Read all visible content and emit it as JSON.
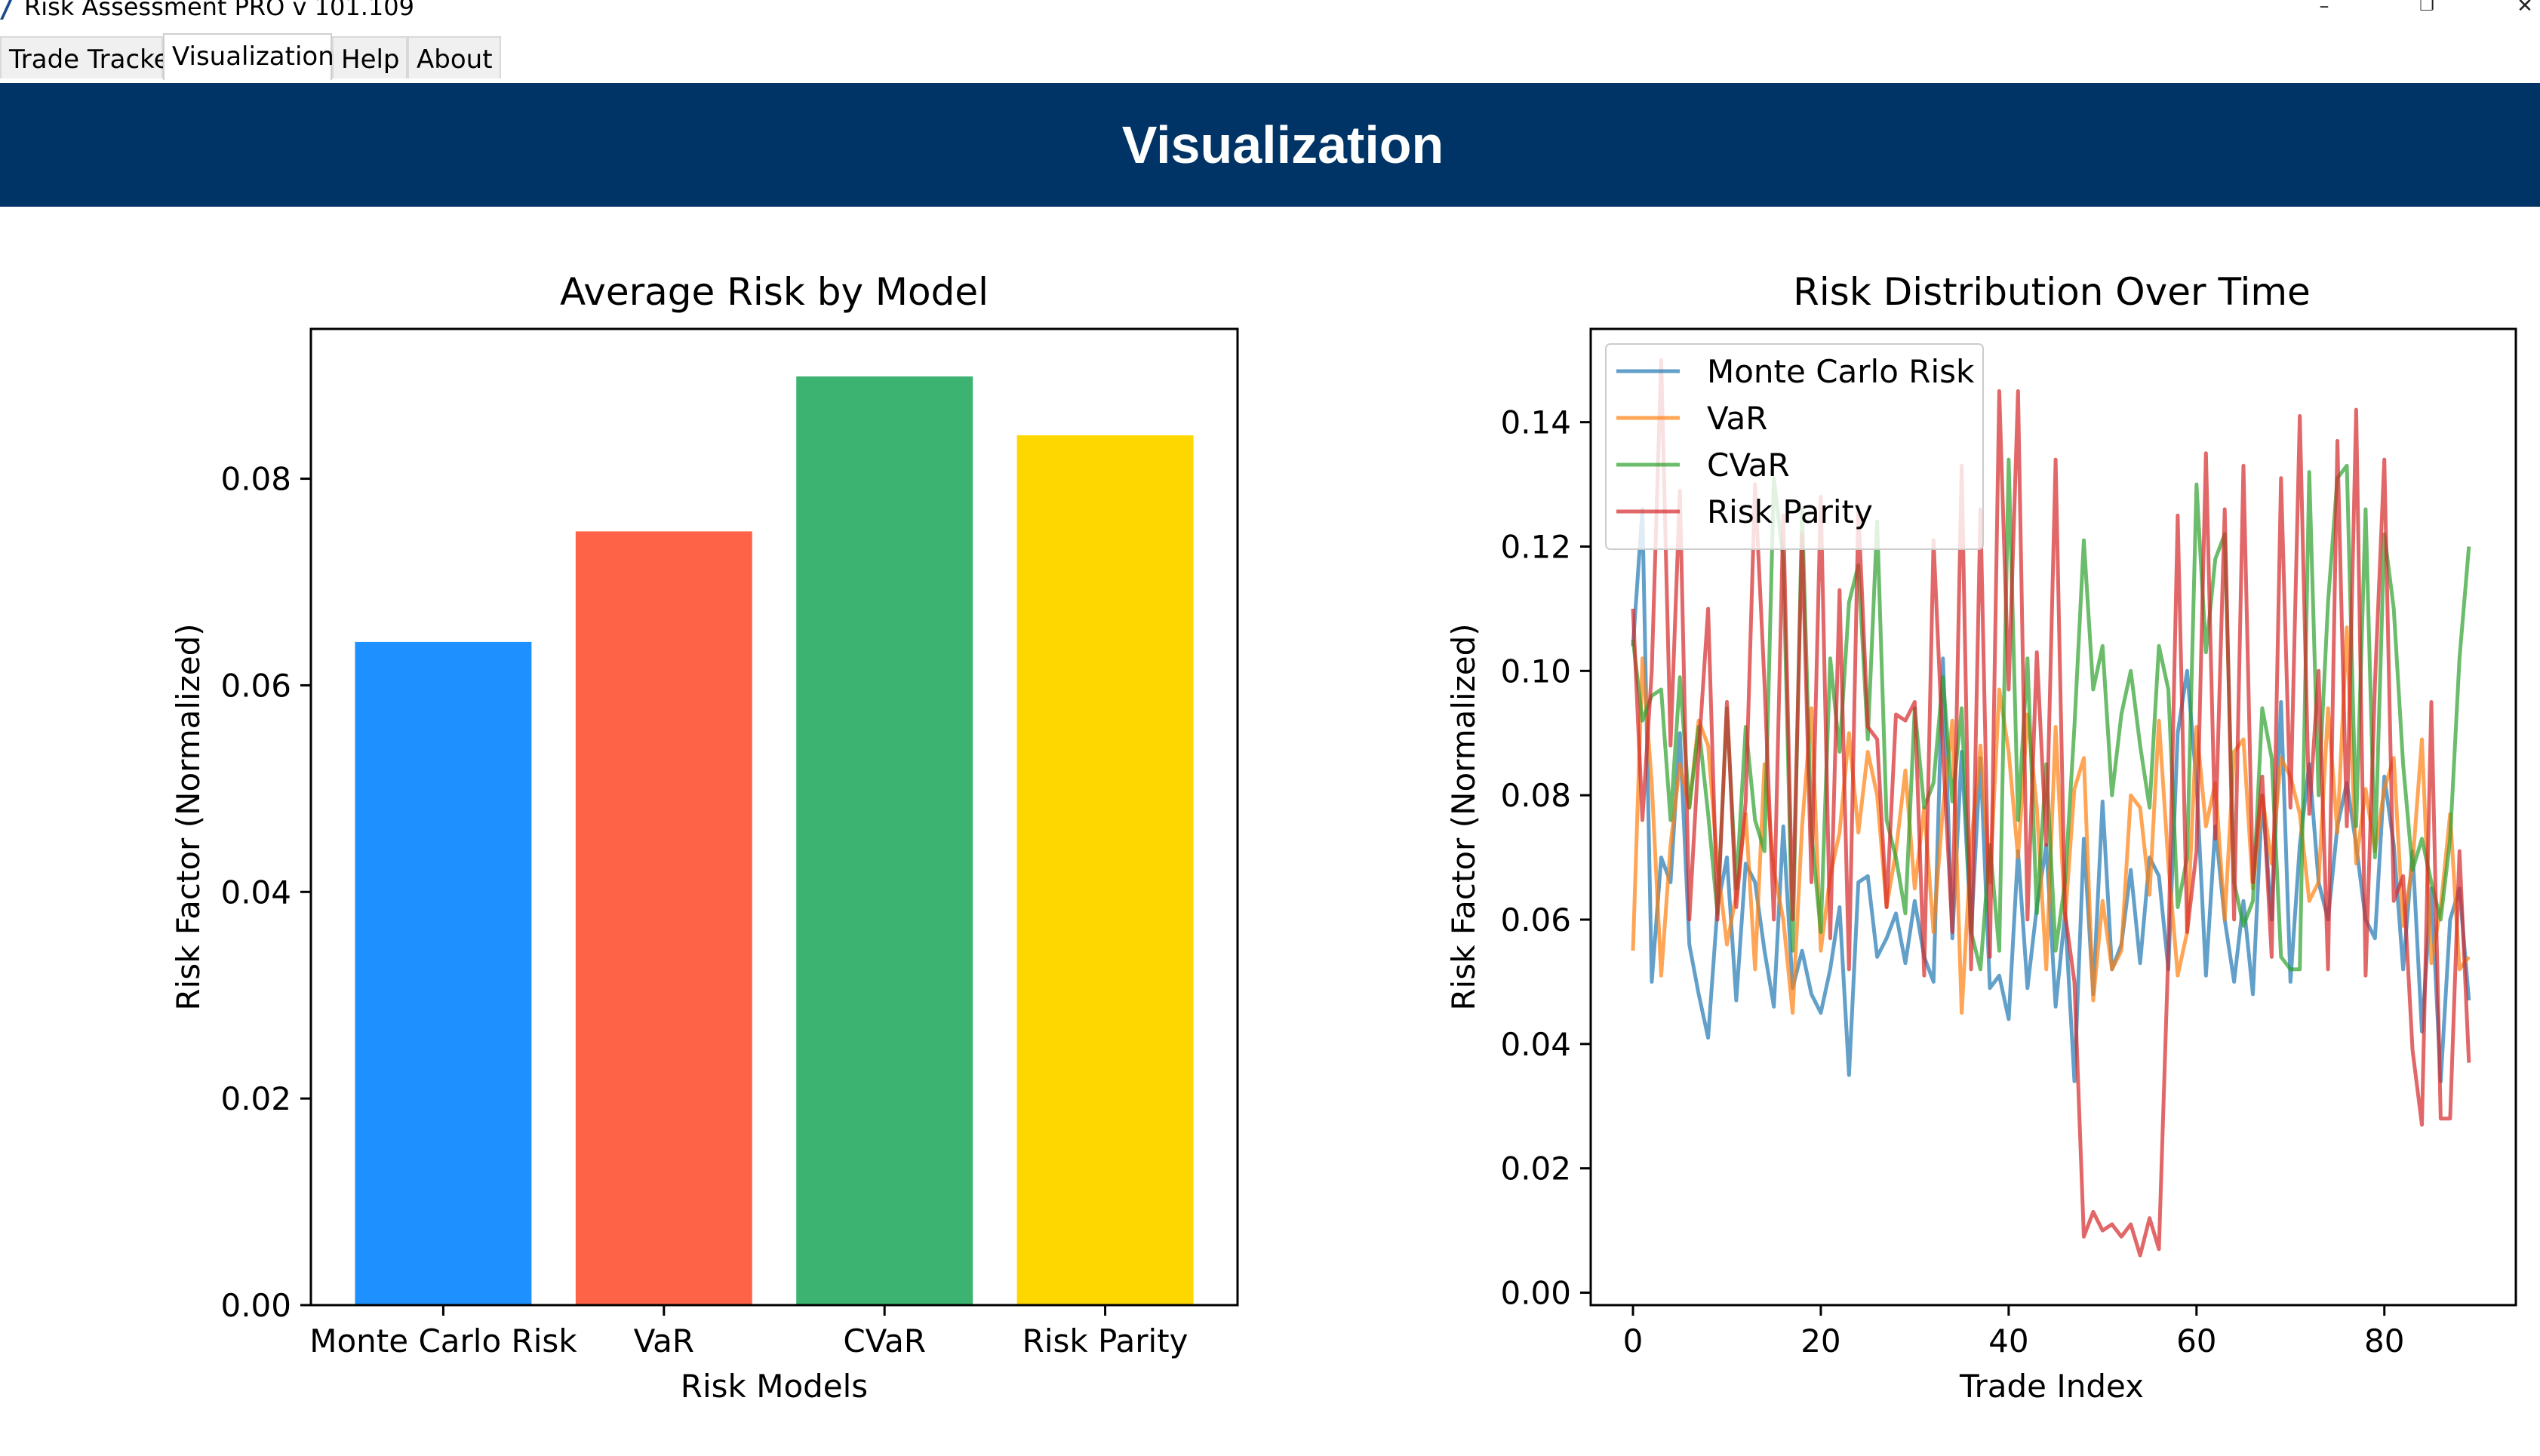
{
  "window": {
    "title": "Risk Assessment PRO v 101.109",
    "minimize": "–",
    "restore": "❐",
    "close": "✕"
  },
  "tabs": [
    {
      "label": "Trade Tracker",
      "active": false
    },
    {
      "label": "Visualization",
      "active": true
    },
    {
      "label": "Help",
      "active": false
    },
    {
      "label": "About",
      "active": false
    }
  ],
  "banner": {
    "title": "Visualization"
  },
  "colors": {
    "banner": "#003366",
    "bar_colors": [
      "#1E90FF",
      "#FF6347",
      "#3CB371",
      "#FFD700"
    ],
    "line_colors": [
      "#1f77b4",
      "#ff7f0e",
      "#2ca02c",
      "#d62728"
    ]
  },
  "chart_data": [
    {
      "type": "bar",
      "title": "Average Risk by Model",
      "xlabel": "Risk Models",
      "ylabel": "Risk Factor (Normalized)",
      "categories": [
        "Monte Carlo Risk",
        "VaR",
        "CVaR",
        "Risk Parity"
      ],
      "values": [
        0.0642,
        0.0749,
        0.0899,
        0.0842
      ],
      "ylim": [
        0,
        0.0945
      ],
      "yticks": [
        0.0,
        0.02,
        0.04,
        0.06,
        0.08
      ],
      "ytick_labels": [
        "0.00",
        "0.02",
        "0.04",
        "0.06",
        "0.08"
      ],
      "colors": [
        "#1E90FF",
        "#FF6347",
        "#3CB371",
        "#FFD700"
      ]
    },
    {
      "type": "line",
      "title": "Risk Distribution Over Time",
      "xlabel": "Trade Index",
      "ylabel": "Risk Factor (Normalized)",
      "xlim": [
        -4.5,
        94
      ],
      "ylim": [
        -0.002,
        0.155
      ],
      "xticks": [
        0,
        20,
        40,
        60,
        80
      ],
      "xtick_labels": [
        "0",
        "20",
        "40",
        "60",
        "80"
      ],
      "yticks": [
        0.0,
        0.02,
        0.04,
        0.06,
        0.08,
        0.1,
        0.12,
        0.14
      ],
      "ytick_labels": [
        "0.00",
        "0.02",
        "0.04",
        "0.06",
        "0.08",
        "0.10",
        "0.12",
        "0.14"
      ],
      "legend": {
        "position": "upper-left"
      },
      "series": [
        {
          "name": "Monte Carlo Risk",
          "color": "#1f77b4",
          "values": [
            0.104,
            0.126,
            0.05,
            0.07,
            0.066,
            0.09,
            0.056,
            0.048,
            0.041,
            0.062,
            0.07,
            0.047,
            0.069,
            0.066,
            0.055,
            0.046,
            0.075,
            0.049,
            0.055,
            0.048,
            0.045,
            0.052,
            0.062,
            0.035,
            0.066,
            0.067,
            0.054,
            0.057,
            0.061,
            0.053,
            0.063,
            0.054,
            0.05,
            0.102,
            0.057,
            0.087,
            0.058,
            0.086,
            0.049,
            0.051,
            0.044,
            0.071,
            0.049,
            0.062,
            0.072,
            0.046,
            0.061,
            0.034,
            0.073,
            0.048,
            0.079,
            0.052,
            0.056,
            0.068,
            0.053,
            0.07,
            0.067,
            0.052,
            0.09,
            0.1,
            0.082,
            0.051,
            0.075,
            0.06,
            0.05,
            0.063,
            0.048,
            0.08,
            0.06,
            0.095,
            0.05,
            0.072,
            0.085,
            0.066,
            0.06,
            0.075,
            0.082,
            0.072,
            0.06,
            0.057,
            0.083,
            0.072,
            0.052,
            0.071,
            0.042,
            0.065,
            0.034,
            0.06,
            0.065,
            0.047
          ]
        },
        {
          "name": "VaR",
          "color": "#ff7f0e",
          "values": [
            0.055,
            0.102,
            0.082,
            0.051,
            0.072,
            0.085,
            0.078,
            0.092,
            0.088,
            0.069,
            0.056,
            0.064,
            0.077,
            0.052,
            0.085,
            0.068,
            0.06,
            0.045,
            0.075,
            0.094,
            0.055,
            0.067,
            0.074,
            0.09,
            0.074,
            0.087,
            0.08,
            0.062,
            0.071,
            0.084,
            0.065,
            0.078,
            0.058,
            0.078,
            0.092,
            0.045,
            0.072,
            0.088,
            0.066,
            0.097,
            0.087,
            0.07,
            0.093,
            0.078,
            0.052,
            0.091,
            0.06,
            0.081,
            0.086,
            0.047,
            0.063,
            0.052,
            0.055,
            0.08,
            0.078,
            0.064,
            0.092,
            0.069,
            0.051,
            0.058,
            0.091,
            0.075,
            0.082,
            0.06,
            0.087,
            0.089,
            0.065,
            0.08,
            0.069,
            0.086,
            0.083,
            0.077,
            0.063,
            0.066,
            0.094,
            0.074,
            0.107,
            0.069,
            0.081,
            0.071,
            0.081,
            0.086,
            0.059,
            0.069,
            0.089,
            0.053,
            0.062,
            0.077,
            0.052,
            0.054
          ]
        },
        {
          "name": "CVaR",
          "color": "#2ca02c",
          "values": [
            0.105,
            0.092,
            0.096,
            0.097,
            0.076,
            0.099,
            0.078,
            0.091,
            0.077,
            0.061,
            0.094,
            0.065,
            0.091,
            0.076,
            0.071,
            0.131,
            0.118,
            0.055,
            0.126,
            0.074,
            0.058,
            0.102,
            0.087,
            0.111,
            0.117,
            0.089,
            0.124,
            0.076,
            0.07,
            0.061,
            0.094,
            0.078,
            0.082,
            0.099,
            0.079,
            0.094,
            0.058,
            0.052,
            0.072,
            0.055,
            0.134,
            0.076,
            0.102,
            0.061,
            0.085,
            0.055,
            0.066,
            0.091,
            0.121,
            0.097,
            0.104,
            0.08,
            0.093,
            0.1,
            0.088,
            0.078,
            0.104,
            0.097,
            0.062,
            0.07,
            0.13,
            0.103,
            0.118,
            0.122,
            0.066,
            0.059,
            0.063,
            0.094,
            0.086,
            0.054,
            0.052,
            0.052,
            0.132,
            0.08,
            0.111,
            0.131,
            0.133,
            0.075,
            0.126,
            0.07,
            0.122,
            0.11,
            0.085,
            0.068,
            0.073,
            0.066,
            0.06,
            0.073,
            0.102,
            0.12
          ]
        },
        {
          "name": "Risk Parity",
          "color": "#d62728",
          "values": [
            0.11,
            0.076,
            0.1,
            0.15,
            0.088,
            0.129,
            0.06,
            0.087,
            0.11,
            0.06,
            0.095,
            0.062,
            0.079,
            0.13,
            0.098,
            0.06,
            0.125,
            0.06,
            0.122,
            0.066,
            0.128,
            0.057,
            0.113,
            0.052,
            0.126,
            0.091,
            0.089,
            0.062,
            0.093,
            0.092,
            0.095,
            0.051,
            0.121,
            0.087,
            0.058,
            0.133,
            0.052,
            0.126,
            0.054,
            0.145,
            0.097,
            0.145,
            0.06,
            0.103,
            0.072,
            0.134,
            0.061,
            0.05,
            0.009,
            0.013,
            0.01,
            0.011,
            0.009,
            0.011,
            0.006,
            0.012,
            0.007,
            0.055,
            0.125,
            0.058,
            0.071,
            0.135,
            0.073,
            0.126,
            0.06,
            0.133,
            0.066,
            0.083,
            0.054,
            0.131,
            0.078,
            0.141,
            0.077,
            0.1,
            0.052,
            0.137,
            0.075,
            0.142,
            0.051,
            0.098,
            0.134,
            0.063,
            0.067,
            0.039,
            0.027,
            0.095,
            0.028,
            0.028,
            0.071,
            0.037
          ]
        }
      ]
    }
  ]
}
